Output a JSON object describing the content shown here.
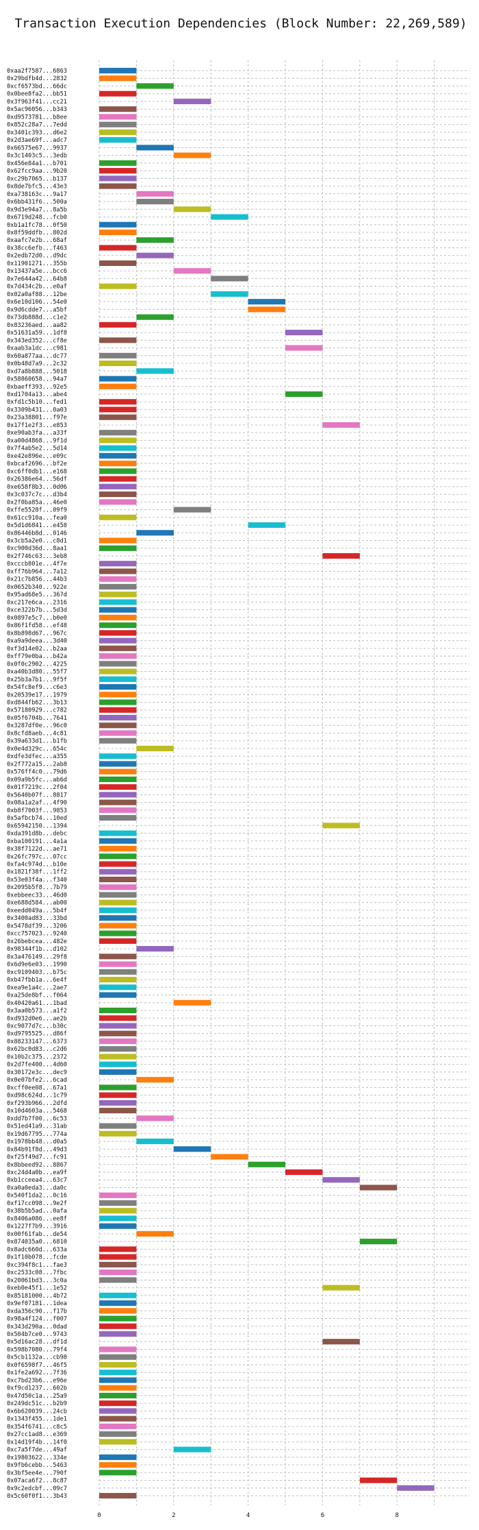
{
  "chart_data": {
    "type": "gantt",
    "title": "Transaction Execution Dependencies (Block Number: 22,269,589)",
    "xlim": [
      0,
      9.5
    ],
    "x_ticks": [
      0,
      2,
      4,
      6,
      8
    ],
    "grid": true,
    "palette": [
      "#1f77b4",
      "#ff7f0e",
      "#2ca02c",
      "#d62728",
      "#9467bd",
      "#8c564b",
      "#e377c2",
      "#7f7f7f",
      "#bcbd22",
      "#17becf"
    ],
    "bar_duration": 1,
    "transactions": [
      {
        "label": "0xaa2f7587...6863",
        "start": 0,
        "color": 0
      },
      {
        "label": "0x29bdfb4d...2832",
        "start": 0,
        "color": 1
      },
      {
        "label": "0xcf6573bd...66dc",
        "start": 1,
        "color": 2
      },
      {
        "label": "0x0bee8fa2...bb51",
        "start": 0,
        "color": 3
      },
      {
        "label": "0x3f963f41...cc21",
        "start": 2,
        "color": 4
      },
      {
        "label": "0x5ac96056...b343",
        "start": 0,
        "color": 5
      },
      {
        "label": "0xd9573781...b8ee",
        "start": 0,
        "color": 6
      },
      {
        "label": "0x852c28a7...7edd",
        "start": 0,
        "color": 7
      },
      {
        "label": "0x3401c393...d6e2",
        "start": 0,
        "color": 8
      },
      {
        "label": "0x2d3ae69f...adc7",
        "start": 0,
        "color": 9
      },
      {
        "label": "0x66575e67...9937",
        "start": 1,
        "color": 0
      },
      {
        "label": "0x3c1403c5...3edb",
        "start": 2,
        "color": 1
      },
      {
        "label": "0x456e84a1...b701",
        "start": 0,
        "color": 2
      },
      {
        "label": "0x62fcc9aa...9b20",
        "start": 0,
        "color": 3
      },
      {
        "label": "0xc29b7065...b137",
        "start": 0,
        "color": 4
      },
      {
        "label": "0x8de7bfc5...43e3",
        "start": 0,
        "color": 5
      },
      {
        "label": "0xa738163c...9a17",
        "start": 1,
        "color": 6
      },
      {
        "label": "0x6bb431f6...500a",
        "start": 1,
        "color": 7
      },
      {
        "label": "0x9d3e94a7...8a5b",
        "start": 2,
        "color": 8
      },
      {
        "label": "0x6719d248...fcb0",
        "start": 3,
        "color": 9
      },
      {
        "label": "0xb1a1fc78...0f50",
        "start": 0,
        "color": 0
      },
      {
        "label": "0x8f59ddfb...802d",
        "start": 0,
        "color": 1
      },
      {
        "label": "0xaafc7e2b...68af",
        "start": 1,
        "color": 2
      },
      {
        "label": "0x38cc6efb...f463",
        "start": 0,
        "color": 3
      },
      {
        "label": "0x2edb72d0...d9dc",
        "start": 1,
        "color": 4
      },
      {
        "label": "0x11901271...355b",
        "start": 0,
        "color": 5
      },
      {
        "label": "0x13437a5e...bcc6",
        "start": 2,
        "color": 6
      },
      {
        "label": "0x7e644a42...64b8",
        "start": 3,
        "color": 7
      },
      {
        "label": "0x7d434c2b...e0af",
        "start": 0,
        "color": 8
      },
      {
        "label": "0x02a0af88...12be",
        "start": 3,
        "color": 9
      },
      {
        "label": "0x6e10d106...54e0",
        "start": 4,
        "color": 0
      },
      {
        "label": "0x9d6cdde7...a5bf",
        "start": 4,
        "color": 1
      },
      {
        "label": "0x73db888d...c1e2",
        "start": 1,
        "color": 2
      },
      {
        "label": "0x83236aed...aa82",
        "start": 0,
        "color": 3
      },
      {
        "label": "0x51631a59...1df8",
        "start": 5,
        "color": 4
      },
      {
        "label": "0x343ed352...cf8e",
        "start": 0,
        "color": 5
      },
      {
        "label": "0xaab3a1dc...c981",
        "start": 5,
        "color": 6
      },
      {
        "label": "0x60a877aa...dc77",
        "start": 0,
        "color": 7
      },
      {
        "label": "0x0b48d7a9...2c32",
        "start": 0,
        "color": 8
      },
      {
        "label": "0xd7a8b888...5018",
        "start": 1,
        "color": 9
      },
      {
        "label": "0x58860658...94a7",
        "start": 0,
        "color": 0
      },
      {
        "label": "0xbaeff393...92e5",
        "start": 0,
        "color": 1
      },
      {
        "label": "0xd1704a13...abe4",
        "start": 5,
        "color": 2
      },
      {
        "label": "0xfd1c5b10...fed1",
        "start": 0,
        "color": 3
      },
      {
        "label": "0x3309b431...0a03",
        "start": 0,
        "color": 3
      },
      {
        "label": "0x23a38801...f97e",
        "start": 0,
        "color": 5
      },
      {
        "label": "0x17f1e2f3...e853",
        "start": 6,
        "color": 6
      },
      {
        "label": "0xe90ab3fa...a33f",
        "start": 0,
        "color": 7
      },
      {
        "label": "0xa00d4868...9f1d",
        "start": 0,
        "color": 8
      },
      {
        "label": "0x7f4ab5e2...5d14",
        "start": 0,
        "color": 9
      },
      {
        "label": "0xe42e896e...e09c",
        "start": 0,
        "color": 0
      },
      {
        "label": "0xbcaf2696...bf2e",
        "start": 0,
        "color": 1
      },
      {
        "label": "0xc6ff0db1...e168",
        "start": 0,
        "color": 2
      },
      {
        "label": "0x26386e64...56df",
        "start": 0,
        "color": 3
      },
      {
        "label": "0xe658f8b3...0d06",
        "start": 0,
        "color": 4
      },
      {
        "label": "0x3c037c7c...d3b4",
        "start": 0,
        "color": 5
      },
      {
        "label": "0x2f0ba85a...46e0",
        "start": 0,
        "color": 6
      },
      {
        "label": "0xffe5528f...09f9",
        "start": 2,
        "color": 7
      },
      {
        "label": "0x61cc910a...fea0",
        "start": 0,
        "color": 8
      },
      {
        "label": "0x5d1d6841...e458",
        "start": 4,
        "color": 9
      },
      {
        "label": "0x86446b8d...0146",
        "start": 1,
        "color": 0
      },
      {
        "label": "0x3cb5a2e0...c8d1",
        "start": 0,
        "color": 1
      },
      {
        "label": "0xc900d36d...8aa1",
        "start": 0,
        "color": 2
      },
      {
        "label": "0x2f746c63...3eb8",
        "start": 6,
        "color": 3
      },
      {
        "label": "0xcccb801e...4f7e",
        "start": 0,
        "color": 4
      },
      {
        "label": "0xff76b964...7a12",
        "start": 0,
        "color": 5
      },
      {
        "label": "0x21c7b856...44b3",
        "start": 0,
        "color": 6
      },
      {
        "label": "0x0652b340...922e",
        "start": 0,
        "color": 7
      },
      {
        "label": "0x95ad68e5...367d",
        "start": 0,
        "color": 8
      },
      {
        "label": "0xc217e6ca...2316",
        "start": 0,
        "color": 9
      },
      {
        "label": "0xce322b7b...5d3d",
        "start": 0,
        "color": 0
      },
      {
        "label": "0x0897e5c7...b0e0",
        "start": 0,
        "color": 1
      },
      {
        "label": "0x86f1fd58...ef48",
        "start": 0,
        "color": 2
      },
      {
        "label": "0x8b898d67...967c",
        "start": 0,
        "color": 3
      },
      {
        "label": "0xa9a9deea...3d40",
        "start": 0,
        "color": 4
      },
      {
        "label": "0xf3d14e02...b2aa",
        "start": 0,
        "color": 5
      },
      {
        "label": "0xff79e0ba...b42a",
        "start": 0,
        "color": 6
      },
      {
        "label": "0x0f0c2902...4225",
        "start": 0,
        "color": 7
      },
      {
        "label": "0xa40b3d80...55f7",
        "start": 0,
        "color": 8
      },
      {
        "label": "0x25b3a7b1...9f5f",
        "start": 0,
        "color": 9
      },
      {
        "label": "0x54fc8ef9...c6e3",
        "start": 0,
        "color": 0
      },
      {
        "label": "0x20539e17...1979",
        "start": 0,
        "color": 1
      },
      {
        "label": "0xd844fb62...3b13",
        "start": 0,
        "color": 2
      },
      {
        "label": "0x57180929...c782",
        "start": 0,
        "color": 3
      },
      {
        "label": "0x05f6704b...7641",
        "start": 0,
        "color": 4
      },
      {
        "label": "0x3287df0e...96c0",
        "start": 0,
        "color": 5
      },
      {
        "label": "0x8cfd8aeb...4c81",
        "start": 0,
        "color": 6
      },
      {
        "label": "0x39a633d1...b1fb",
        "start": 0,
        "color": 7
      },
      {
        "label": "0x0e4d329c...654c",
        "start": 1,
        "color": 8
      },
      {
        "label": "0xdfe3dfec...a355",
        "start": 0,
        "color": 9
      },
      {
        "label": "0x2f772a15...2ab8",
        "start": 0,
        "color": 0
      },
      {
        "label": "0x576ff4c0...79d6",
        "start": 0,
        "color": 1
      },
      {
        "label": "0x09a9b5fc...ab6d",
        "start": 0,
        "color": 2
      },
      {
        "label": "0x01f7219c...2f04",
        "start": 0,
        "color": 3
      },
      {
        "label": "0x5640b07f...8817",
        "start": 0,
        "color": 4
      },
      {
        "label": "0x08a1a2af...4f90",
        "start": 0,
        "color": 5
      },
      {
        "label": "0xb8f7003f...9853",
        "start": 0,
        "color": 6
      },
      {
        "label": "0x5afbcb74...10ed",
        "start": 0,
        "color": 7
      },
      {
        "label": "0x65942150...1394",
        "start": 6,
        "color": 8
      },
      {
        "label": "0xda391d8b...debc",
        "start": 0,
        "color": 9
      },
      {
        "label": "0xba100191...4a1a",
        "start": 0,
        "color": 0
      },
      {
        "label": "0x38f7122d...ae71",
        "start": 0,
        "color": 1
      },
      {
        "label": "0x26fc797c...07cc",
        "start": 0,
        "color": 2
      },
      {
        "label": "0xfa4c974d...b10e",
        "start": 0,
        "color": 3
      },
      {
        "label": "0x1821f38f...1ff2",
        "start": 0,
        "color": 4
      },
      {
        "label": "0x53e03f4a...f340",
        "start": 0,
        "color": 5
      },
      {
        "label": "0x2095b5f8...7b79",
        "start": 0,
        "color": 6
      },
      {
        "label": "0xebbeec33...46d0",
        "start": 0,
        "color": 7
      },
      {
        "label": "0xe688d584...ab00",
        "start": 0,
        "color": 8
      },
      {
        "label": "0xeedd049a...5b4f",
        "start": 0,
        "color": 9
      },
      {
        "label": "0x3400ad83...33bd",
        "start": 0,
        "color": 0
      },
      {
        "label": "0x5478df39...3206",
        "start": 0,
        "color": 1
      },
      {
        "label": "0xcc757023...9240",
        "start": 0,
        "color": 2
      },
      {
        "label": "0x26bebcea...482e",
        "start": 0,
        "color": 3
      },
      {
        "label": "0x98344f1b...d102",
        "start": 1,
        "color": 4
      },
      {
        "label": "0x3a476149...29f8",
        "start": 0,
        "color": 5
      },
      {
        "label": "0x6d9e6e03...1990",
        "start": 0,
        "color": 6
      },
      {
        "label": "0xc9109403...b75c",
        "start": 0,
        "color": 7
      },
      {
        "label": "0xb47fbb1a...6e4f",
        "start": 0,
        "color": 8
      },
      {
        "label": "0xea9e1a4c...2ae7",
        "start": 0,
        "color": 9
      },
      {
        "label": "0xa25de8bf...f064",
        "start": 0,
        "color": 0
      },
      {
        "label": "0x40420a61...1bad",
        "start": 2,
        "color": 1
      },
      {
        "label": "0x3aa0b573...a1f2",
        "start": 0,
        "color": 2
      },
      {
        "label": "0xd932d0e6...ae2b",
        "start": 0,
        "color": 3
      },
      {
        "label": "0xc9077d7c...b30c",
        "start": 0,
        "color": 4
      },
      {
        "label": "0xd9795525...d86f",
        "start": 0,
        "color": 5
      },
      {
        "label": "0x88233147...6373",
        "start": 0,
        "color": 6
      },
      {
        "label": "0x62bc0d83...c2d6",
        "start": 0,
        "color": 7
      },
      {
        "label": "0x10b2c375...2372",
        "start": 0,
        "color": 8
      },
      {
        "label": "0x2d7fe400...4d60",
        "start": 0,
        "color": 9
      },
      {
        "label": "0x30172e3c...dec9",
        "start": 0,
        "color": 0
      },
      {
        "label": "0x0e07bfe2...6cad",
        "start": 1,
        "color": 1
      },
      {
        "label": "0xcff0ee08...67a1",
        "start": 0,
        "color": 2
      },
      {
        "label": "0xd98c624d...1c79",
        "start": 0,
        "color": 3
      },
      {
        "label": "0xf293b966...2dfd",
        "start": 0,
        "color": 4
      },
      {
        "label": "0x10d4603a...5468",
        "start": 0,
        "color": 5
      },
      {
        "label": "0xdd7b7f00...6c53",
        "start": 1,
        "color": 6
      },
      {
        "label": "0x51ed41a9...31ab",
        "start": 0,
        "color": 7
      },
      {
        "label": "0x19d67795...774a",
        "start": 0,
        "color": 8
      },
      {
        "label": "0x1978bb48...d0a5",
        "start": 1,
        "color": 9
      },
      {
        "label": "0x84b91f8d...49d3",
        "start": 2,
        "color": 0
      },
      {
        "label": "0xf25f49d7...fc91",
        "start": 3,
        "color": 1
      },
      {
        "label": "0x8bbeed92...8867",
        "start": 4,
        "color": 2
      },
      {
        "label": "0xc24d4a0b...ea9f",
        "start": 5,
        "color": 3
      },
      {
        "label": "0xb1cceea4...63c7",
        "start": 6,
        "color": 4
      },
      {
        "label": "0xa0a0eda3...da0c",
        "start": 7,
        "color": 5
      },
      {
        "label": "0x540f1da2...0c16",
        "start": 0,
        "color": 6
      },
      {
        "label": "0xf17cc098...9e2f",
        "start": 0,
        "color": 7
      },
      {
        "label": "0x38b5b5ad...0afa",
        "start": 0,
        "color": 8
      },
      {
        "label": "0x8406a086...ee8f",
        "start": 0,
        "color": 9
      },
      {
        "label": "0x1227f7b9...3916",
        "start": 0,
        "color": 0
      },
      {
        "label": "0x00f61fab...de54",
        "start": 1,
        "color": 1
      },
      {
        "label": "0x874035a0...6810",
        "start": 7,
        "color": 2
      },
      {
        "label": "0x8adc660d...633a",
        "start": 0,
        "color": 3
      },
      {
        "label": "0x1f10b078...fcde",
        "start": 0,
        "color": 3
      },
      {
        "label": "0xc394f8c1...fae3",
        "start": 0,
        "color": 5
      },
      {
        "label": "0xc2533c08...7fbc",
        "start": 0,
        "color": 6
      },
      {
        "label": "0x20061bd3...3c0a",
        "start": 0,
        "color": 7
      },
      {
        "label": "0xeb0e45f1...1e52",
        "start": 6,
        "color": 8
      },
      {
        "label": "0x85181000...4b72",
        "start": 0,
        "color": 9
      },
      {
        "label": "0x9ef07181...1dea",
        "start": 0,
        "color": 0
      },
      {
        "label": "0xda356c90...f17b",
        "start": 0,
        "color": 1
      },
      {
        "label": "0x98a4f124...f007",
        "start": 0,
        "color": 2
      },
      {
        "label": "0x343d290a...0dad",
        "start": 0,
        "color": 3
      },
      {
        "label": "0x504b7ce0...9743",
        "start": 0,
        "color": 4
      },
      {
        "label": "0x5d16ac28...df1d",
        "start": 6,
        "color": 5
      },
      {
        "label": "0x598b7080...79f4",
        "start": 0,
        "color": 6
      },
      {
        "label": "0x5cb1132a...cb98",
        "start": 0,
        "color": 7
      },
      {
        "label": "0x0f6598f7...46f5",
        "start": 0,
        "color": 8
      },
      {
        "label": "0x1fe2a692...7f36",
        "start": 0,
        "color": 9
      },
      {
        "label": "0xc7bd23b6...e96e",
        "start": 0,
        "color": 0
      },
      {
        "label": "0xf9cd1237...602b",
        "start": 0,
        "color": 1
      },
      {
        "label": "0x47d50c1a...25a9",
        "start": 0,
        "color": 2
      },
      {
        "label": "0x249dc51c...b2b9",
        "start": 0,
        "color": 3
      },
      {
        "label": "0x6b620039...24cb",
        "start": 0,
        "color": 4
      },
      {
        "label": "0x1343f455...1de1",
        "start": 0,
        "color": 5
      },
      {
        "label": "0x354f6741...c8c5",
        "start": 0,
        "color": 6
      },
      {
        "label": "0x27cc1ad8...e369",
        "start": 0,
        "color": 7
      },
      {
        "label": "0x14d19f4b...14f0",
        "start": 0,
        "color": 8
      },
      {
        "label": "0xc7a5f7de...49af",
        "start": 2,
        "color": 9
      },
      {
        "label": "0x19803622...334e",
        "start": 0,
        "color": 0
      },
      {
        "label": "0x9fb6cebb...5463",
        "start": 0,
        "color": 1
      },
      {
        "label": "0x3bf5ee4e...790f",
        "start": 0,
        "color": 2
      },
      {
        "label": "0x07aca6f2...8c87",
        "start": 7,
        "color": 3
      },
      {
        "label": "0x9c2edcbf...09c7",
        "start": 8,
        "color": 4
      },
      {
        "label": "0x5c60f0f1...3b43",
        "start": 0,
        "color": 5
      }
    ]
  }
}
